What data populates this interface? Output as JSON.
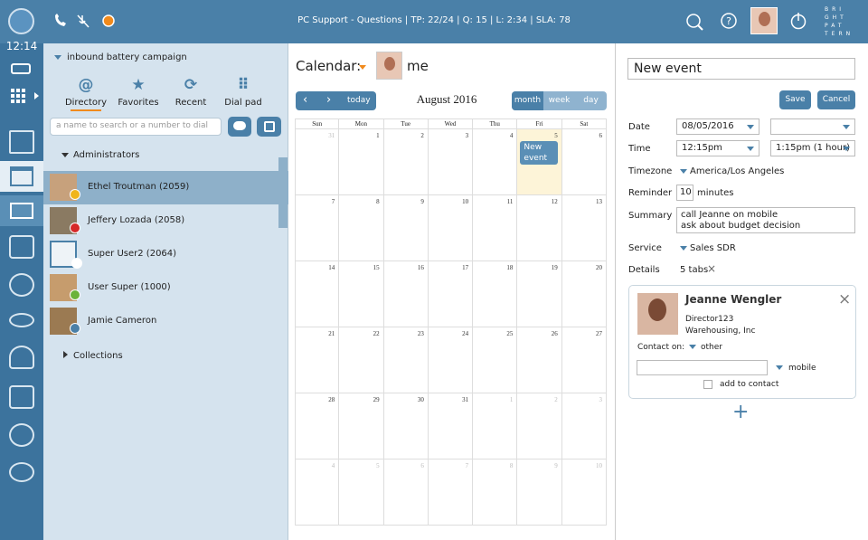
{
  "top_bar": {
    "status": "PC Support - Questions | TP: 22/24 | Q: 15 | L: 2:34 | SLA: 78",
    "logo": [
      "BRI",
      "GHT",
      "PAT",
      "TERN"
    ]
  },
  "sidebar": {
    "time": "12:14"
  },
  "left_panel": {
    "campaign": "inbound battery campaign",
    "tabs": [
      "Directory",
      "Favorites",
      "Recent",
      "Dial pad"
    ],
    "search_placeholder": "a name to search or a number to dial",
    "group": "Administrators",
    "contacts": [
      "Ethel Troutman (2059)",
      "Jeffery Lozada (2058)",
      "Super User2 (2064)",
      "User Super (1000)",
      "Jamie Cameron"
    ],
    "collections": "Collections"
  },
  "calendar": {
    "label": "Calendar:",
    "owner": "me",
    "today": "today",
    "month_title": "August 2016",
    "views": [
      "month",
      "week",
      "day"
    ],
    "weekdays": [
      "Sun",
      "Mon",
      "Tue",
      "Wed",
      "Thu",
      "Fri",
      "Sat"
    ],
    "weeks": [
      [
        31,
        1,
        2,
        3,
        4,
        5,
        6
      ],
      [
        7,
        8,
        9,
        10,
        11,
        12,
        13
      ],
      [
        14,
        15,
        16,
        17,
        18,
        19,
        20
      ],
      [
        21,
        22,
        23,
        24,
        25,
        26,
        27
      ],
      [
        28,
        29,
        30,
        31,
        1,
        2,
        3
      ],
      [
        4,
        5,
        6,
        7,
        8,
        9,
        10
      ]
    ],
    "event": "New event"
  },
  "event_form": {
    "title": "New event",
    "save": "Save",
    "cancel": "Cancel",
    "date_label": "Date",
    "date": "08/05/2016",
    "time_label": "Time",
    "time_start": "12:15pm",
    "time_end": "1:15pm (1 hour)",
    "timezone_label": "Timezone",
    "timezone": "America/Los Angeles",
    "reminder_label": "Reminder",
    "reminder": "10",
    "reminder_unit": "minutes",
    "summary_label": "Summary",
    "summary": [
      "call Jeanne on mobile",
      "ask about budget decision"
    ],
    "service_label": "Service",
    "service": "Sales SDR",
    "details_label": "Details",
    "details": "5 tabs",
    "contact": {
      "name": "Jeanne Wengler",
      "title": "Director123",
      "company": "Warehousing, Inc",
      "contact_on": "Contact on:",
      "contact_on_value": "other",
      "phone_type": "mobile",
      "add": "add to contact"
    }
  }
}
